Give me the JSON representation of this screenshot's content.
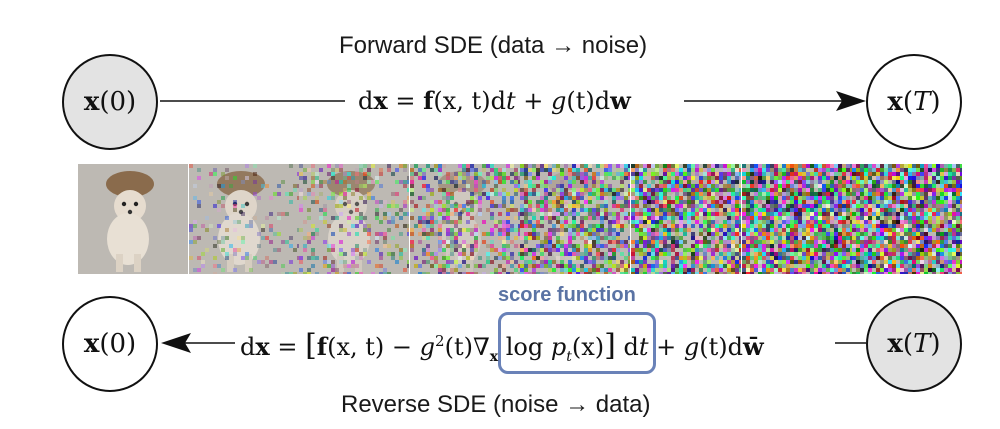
{
  "forward": {
    "caption": "Forward SDE (data → noise)",
    "start_node": {
      "bold": "x",
      "arg": "0"
    },
    "end_node": {
      "bold": "x",
      "arg": "T"
    },
    "equation": {
      "d": "d",
      "x": "x",
      "eq": " = ",
      "f": "f",
      "args": "(x, t)",
      "dt": "d",
      "t": "t",
      "plus": " + ",
      "g": "g",
      "gt": "(t)",
      "dw_d": "d",
      "w": "w"
    }
  },
  "reverse": {
    "caption": "Reverse SDE (noise → data)",
    "start_node": {
      "bold": "x",
      "arg": "T"
    },
    "end_node": {
      "bold": "x",
      "arg": "0"
    },
    "score_label": "score function",
    "equation": {
      "d": "d",
      "x": "x",
      "eq": " = ",
      "lbr": "[",
      "f": "f",
      "args": "(x, t)",
      "minus": " − ",
      "g": "g",
      "sq": "2",
      "gt": "(t)",
      "nabla": "∇",
      "nabla_sub": "x",
      "log": " log ",
      "p": "p",
      "p_sub": "t",
      "px": "(x)",
      "rbr": "]",
      "dt": " d",
      "t": "t",
      "plus": " + ",
      "g2": "g",
      "gt2": "(t)",
      "dw_d": "d",
      "w": "w̄"
    }
  },
  "strip": {
    "frames": [
      {
        "noise": 0.0
      },
      {
        "noise": 0.18
      },
      {
        "noise": 0.35
      },
      {
        "noise": 0.55
      },
      {
        "noise": 0.75
      },
      {
        "noise": 0.9
      },
      {
        "noise": 0.97
      },
      {
        "noise": 1.0
      }
    ]
  },
  "colors": {
    "node_fill": "#e3e3e3",
    "score_accent": "#6a82b8",
    "line": "#111111"
  }
}
